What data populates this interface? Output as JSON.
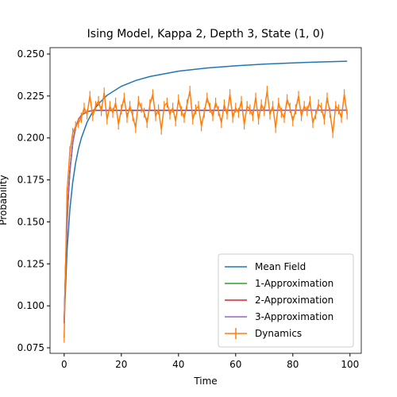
{
  "chart_data": {
    "type": "line",
    "title": "Ising Model, Kappa 2, Depth 3, State (1, 0)",
    "xlabel": "Time",
    "ylabel": "Probability",
    "xlim": [
      -4.95,
      103.95
    ],
    "ylim": [
      0.0717,
      0.2538
    ],
    "xticks": [
      0,
      20,
      40,
      60,
      80,
      100
    ],
    "yticks": [
      0.075,
      {
        "value": 0.1,
        "label": "0.100"
      },
      0.125,
      {
        "value": 0.15,
        "label": "0.150"
      },
      0.175,
      {
        "value": 0.2,
        "label": "0.200"
      },
      0.225,
      {
        "value": 0.25,
        "label": "0.250"
      }
    ],
    "legend": "lower right",
    "series": [
      {
        "name": "Mean Field",
        "color": "#1f77b4",
        "x": [
          0,
          1,
          2,
          3,
          4,
          5,
          6,
          8,
          10,
          12,
          15,
          20,
          25,
          30,
          40,
          50,
          60,
          70,
          80,
          90,
          99
        ],
        "values": [
          0.0899,
          0.1328,
          0.1576,
          0.1737,
          0.1851,
          0.1935,
          0.1999,
          0.2093,
          0.2157,
          0.2203,
          0.2254,
          0.2308,
          0.2342,
          0.2366,
          0.2398,
          0.2417,
          0.243,
          0.244,
          0.2447,
          0.2453,
          0.2457
        ]
      },
      {
        "name": "1-Approximation",
        "color": "#2ca02c",
        "x": [
          0,
          0.5,
          1,
          1.5,
          2,
          3,
          4,
          5,
          6,
          8,
          10,
          99
        ],
        "values": [
          0.0895,
          0.1235,
          0.1486,
          0.1667,
          0.1801,
          0.1971,
          0.2061,
          0.2109,
          0.2135,
          0.2156,
          0.2163,
          0.2165
        ]
      },
      {
        "name": "2-Approximation",
        "color": "#d62728",
        "x": [
          0,
          0.5,
          1,
          1.5,
          2,
          3,
          4,
          5,
          6,
          8,
          10,
          99
        ],
        "values": [
          0.0895,
          0.1238,
          0.149,
          0.167,
          0.1803,
          0.1972,
          0.2062,
          0.211,
          0.2136,
          0.2157,
          0.2164,
          0.2166
        ]
      },
      {
        "name": "3-Approximation",
        "color": "#9467bd",
        "x": [
          0,
          0.5,
          1,
          1.5,
          2,
          3,
          4,
          5,
          6,
          8,
          10,
          99
        ],
        "values": [
          0.0895,
          0.124,
          0.1492,
          0.1672,
          0.1805,
          0.1973,
          0.2062,
          0.211,
          0.2136,
          0.2157,
          0.2164,
          0.2166
        ]
      },
      {
        "name": "Dynamics",
        "color": "#ff7f0e",
        "error": 0.003,
        "x": [
          0,
          1,
          2,
          3,
          4,
          5,
          6,
          7,
          8,
          9,
          10,
          11,
          12,
          13,
          14,
          15,
          16,
          17,
          18,
          19,
          20,
          21,
          22,
          23,
          24,
          25,
          26,
          27,
          28,
          29,
          30,
          31,
          32,
          33,
          34,
          35,
          36,
          37,
          38,
          39,
          40,
          41,
          42,
          43,
          44,
          45,
          46,
          47,
          48,
          49,
          50,
          51,
          52,
          53,
          54,
          55,
          56,
          57,
          58,
          59,
          60,
          61,
          62,
          63,
          64,
          65,
          66,
          67,
          68,
          69,
          70,
          71,
          72,
          73,
          74,
          75,
          76,
          77,
          78,
          79,
          80,
          81,
          82,
          83,
          84,
          85,
          86,
          87,
          88,
          89,
          90,
          91,
          92,
          93,
          94,
          95,
          96,
          97,
          98,
          99
        ],
        "values": [
          0.081,
          0.168,
          0.192,
          0.203,
          0.207,
          0.209,
          0.212,
          0.218,
          0.214,
          0.225,
          0.213,
          0.219,
          0.222,
          0.216,
          0.227,
          0.211,
          0.219,
          0.215,
          0.221,
          0.208,
          0.217,
          0.224,
          0.212,
          0.219,
          0.213,
          0.206,
          0.222,
          0.218,
          0.215,
          0.209,
          0.22,
          0.226,
          0.213,
          0.217,
          0.205,
          0.219,
          0.221,
          0.214,
          0.218,
          0.21,
          0.223,
          0.216,
          0.212,
          0.22,
          0.228,
          0.211,
          0.217,
          0.219,
          0.207,
          0.215,
          0.224,
          0.218,
          0.213,
          0.221,
          0.216,
          0.209,
          0.22,
          0.214,
          0.226,
          0.212,
          0.218,
          0.215,
          0.222,
          0.208,
          0.219,
          0.217,
          0.213,
          0.224,
          0.211,
          0.22,
          0.216,
          0.228,
          0.214,
          0.219,
          0.206,
          0.221,
          0.215,
          0.212,
          0.223,
          0.218,
          0.21,
          0.217,
          0.225,
          0.213,
          0.219,
          0.216,
          0.222,
          0.209,
          0.214,
          0.22,
          0.218,
          0.211,
          0.224,
          0.215,
          0.203,
          0.219,
          0.217,
          0.212,
          0.226,
          0.214
        ]
      }
    ]
  }
}
